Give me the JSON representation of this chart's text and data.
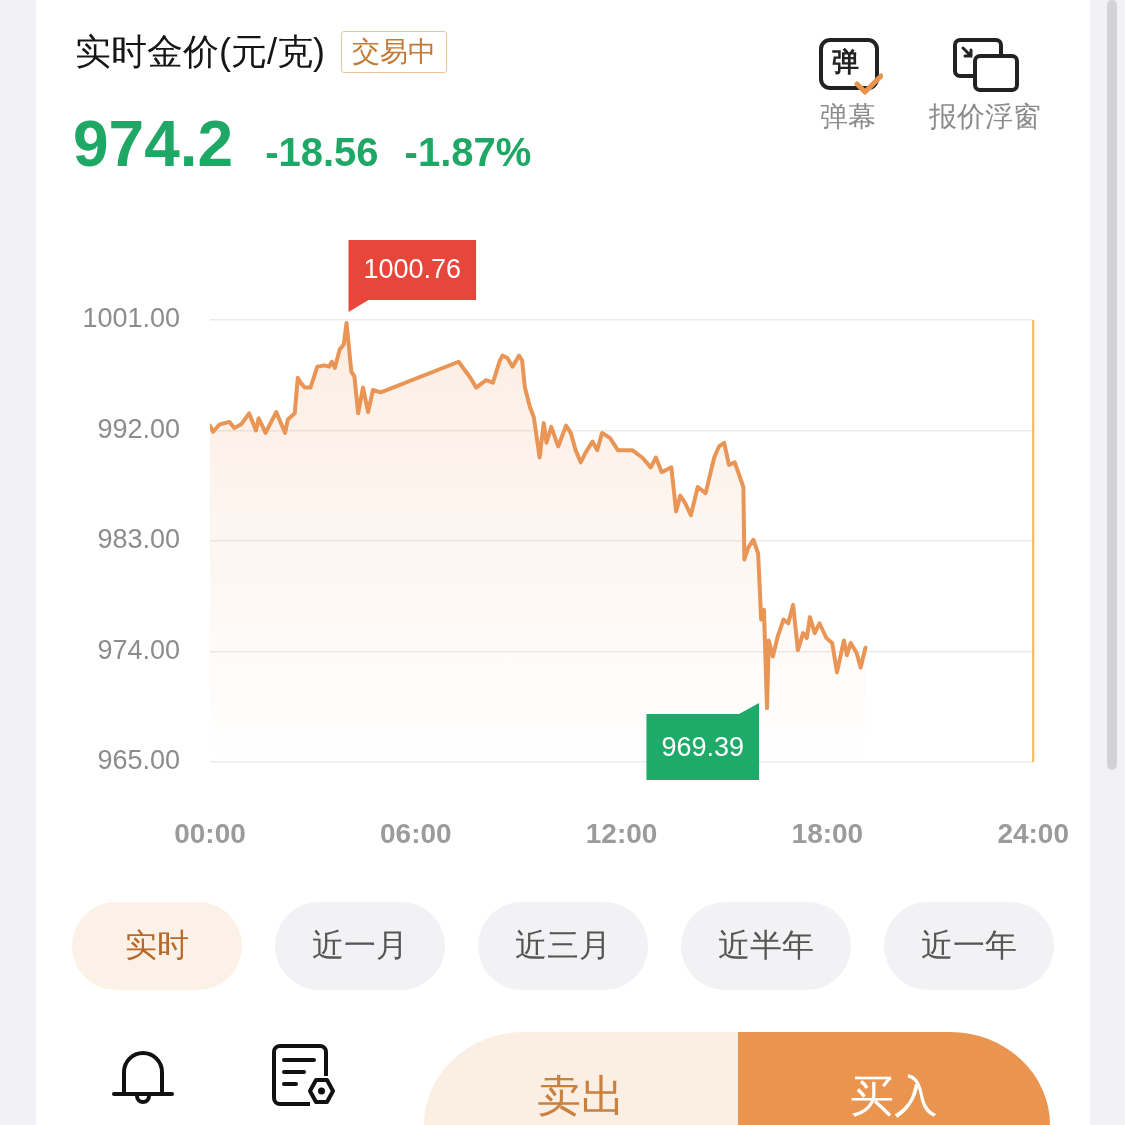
{
  "chart_data": {
    "type": "area",
    "title": "实时金价(元/克)",
    "annotations": [
      "交易中",
      "974.2",
      "-18.56",
      "-1.87%",
      "弹",
      "弹幕",
      "报价浮窗",
      "实时",
      "近一月",
      "近三月",
      "近半年",
      "近一年",
      "卖出",
      "买入",
      {
        "text": "1000.76",
        "x": 3.98,
        "y": 1000.76
      },
      {
        "text": "969.39",
        "x": 16.24,
        "y": 969.39
      }
    ],
    "x": [
      0,
      0.09,
      0.28,
      0.57,
      0.71,
      0.91,
      1.14,
      1.34,
      1.42,
      1.62,
      1.93,
      2.19,
      2.27,
      2.47,
      2.56,
      2.64,
      2.76,
      2.93,
      3.13,
      3.33,
      3.47,
      3.55,
      3.64,
      3.78,
      3.9,
      3.98,
      4.04,
      4.12,
      4.21,
      4.32,
      4.46,
      4.61,
      4.75,
      4.98,
      7.25,
      7.59,
      7.76,
      8.05,
      8.25,
      8.45,
      8.53,
      8.67,
      8.82,
      9.01,
      9.1,
      9.18,
      9.33,
      9.44,
      9.61,
      9.73,
      9.81,
      9.95,
      10.15,
      10.38,
      10.52,
      10.66,
      10.81,
      10.95,
      11.15,
      11.29,
      11.43,
      11.66,
      11.89,
      12.03,
      12.31,
      12.6,
      12.85,
      13,
      13.17,
      13.45,
      13.59,
      13.71,
      13.85,
      14.02,
      14.22,
      14.45,
      14.7,
      14.84,
      14.99,
      15.13,
      15.3,
      15.55,
      15.58,
      15.7,
      15.84,
      15.98,
      16.07,
      16.15,
      16.24,
      16.29,
      16.41,
      16.55,
      16.72,
      16.86,
      17,
      17.14,
      17.29,
      17.4,
      17.49,
      17.63,
      17.77,
      17.97,
      18.14,
      18.28,
      18.48,
      18.57,
      18.68,
      18.85,
      18.97,
      19.11
    ],
    "values": [
      992.4,
      991.9,
      992.5,
      992.7,
      992.2,
      992.5,
      993.4,
      992.0,
      993.0,
      991.8,
      993.5,
      991.8,
      992.9,
      993.4,
      996.3,
      995.9,
      995.5,
      995.5,
      997.2,
      997.3,
      997.2,
      997.6,
      997.1,
      998.6,
      999.0,
      1000.76,
      999.1,
      996.8,
      996.4,
      993.4,
      995.5,
      993.5,
      995.3,
      995.1,
      997.6,
      996.3,
      995.5,
      996.1,
      995.9,
      997.7,
      998.1,
      997.9,
      997.2,
      998.1,
      997.7,
      995.5,
      993.9,
      993.1,
      989.8,
      992.6,
      991.0,
      992.3,
      990.7,
      992.4,
      991.8,
      990.4,
      989.4,
      990.2,
      991.1,
      990.4,
      991.8,
      991.4,
      990.4,
      990.4,
      990.4,
      989.8,
      989.0,
      989.8,
      988.6,
      989.0,
      985.4,
      986.7,
      986.1,
      985.1,
      987.4,
      986.9,
      989.8,
      990.7,
      991.0,
      989.2,
      989.4,
      987.4,
      981.5,
      982.5,
      983.1,
      982.0,
      976.6,
      977.4,
      969.39,
      974.9,
      973.6,
      975.2,
      976.6,
      976.3,
      977.8,
      974.1,
      975.5,
      975.1,
      976.8,
      975.5,
      976.3,
      975.1,
      974.7,
      972.3,
      974.9,
      973.7,
      974.7,
      973.9,
      972.7,
      974.3
    ],
    "color": "#e99556",
    "xlim": [
      0,
      24
    ],
    "xticks": [
      {
        "value": 0,
        "label": "00:00"
      },
      {
        "value": 6,
        "label": "06:00"
      },
      {
        "value": 12,
        "label": "12:00"
      },
      {
        "value": 18,
        "label": "18:00"
      },
      {
        "value": 24,
        "label": "24:00"
      }
    ],
    "ylim": [
      965,
      1001
    ],
    "yticks": [
      {
        "value": 965,
        "label": "965.00"
      },
      {
        "value": 974,
        "label": "974.00"
      },
      {
        "value": 983,
        "label": "983.00"
      },
      {
        "value": 992,
        "label": "992.00"
      },
      {
        "value": 1001,
        "label": "1001.00"
      }
    ],
    "grid": "y",
    "ref_lines": [
      {
        "axis": "x",
        "value": 24,
        "color": "#f2b84b"
      }
    ]
  }
}
